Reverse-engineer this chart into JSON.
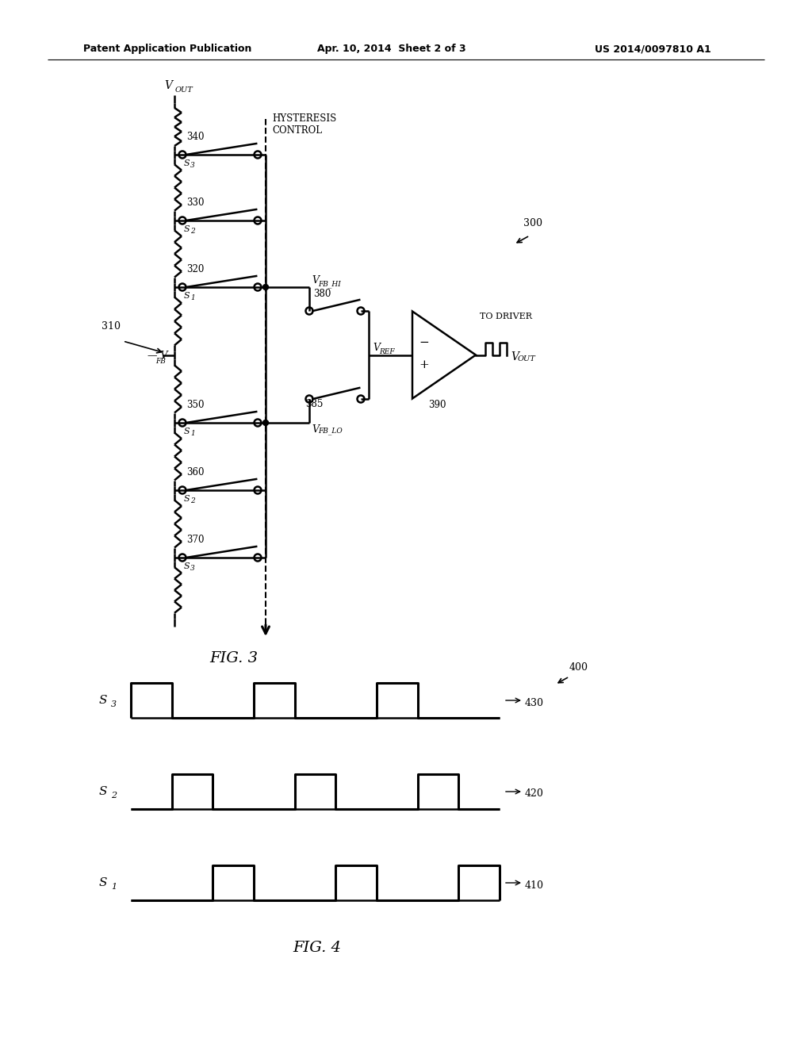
{
  "bg_color": "#ffffff",
  "line_color": "#000000",
  "header_text_left": "Patent Application Publication",
  "header_text_mid": "Apr. 10, 2014  Sheet 2 of 3",
  "header_text_right": "US 2014/0097810 A1"
}
